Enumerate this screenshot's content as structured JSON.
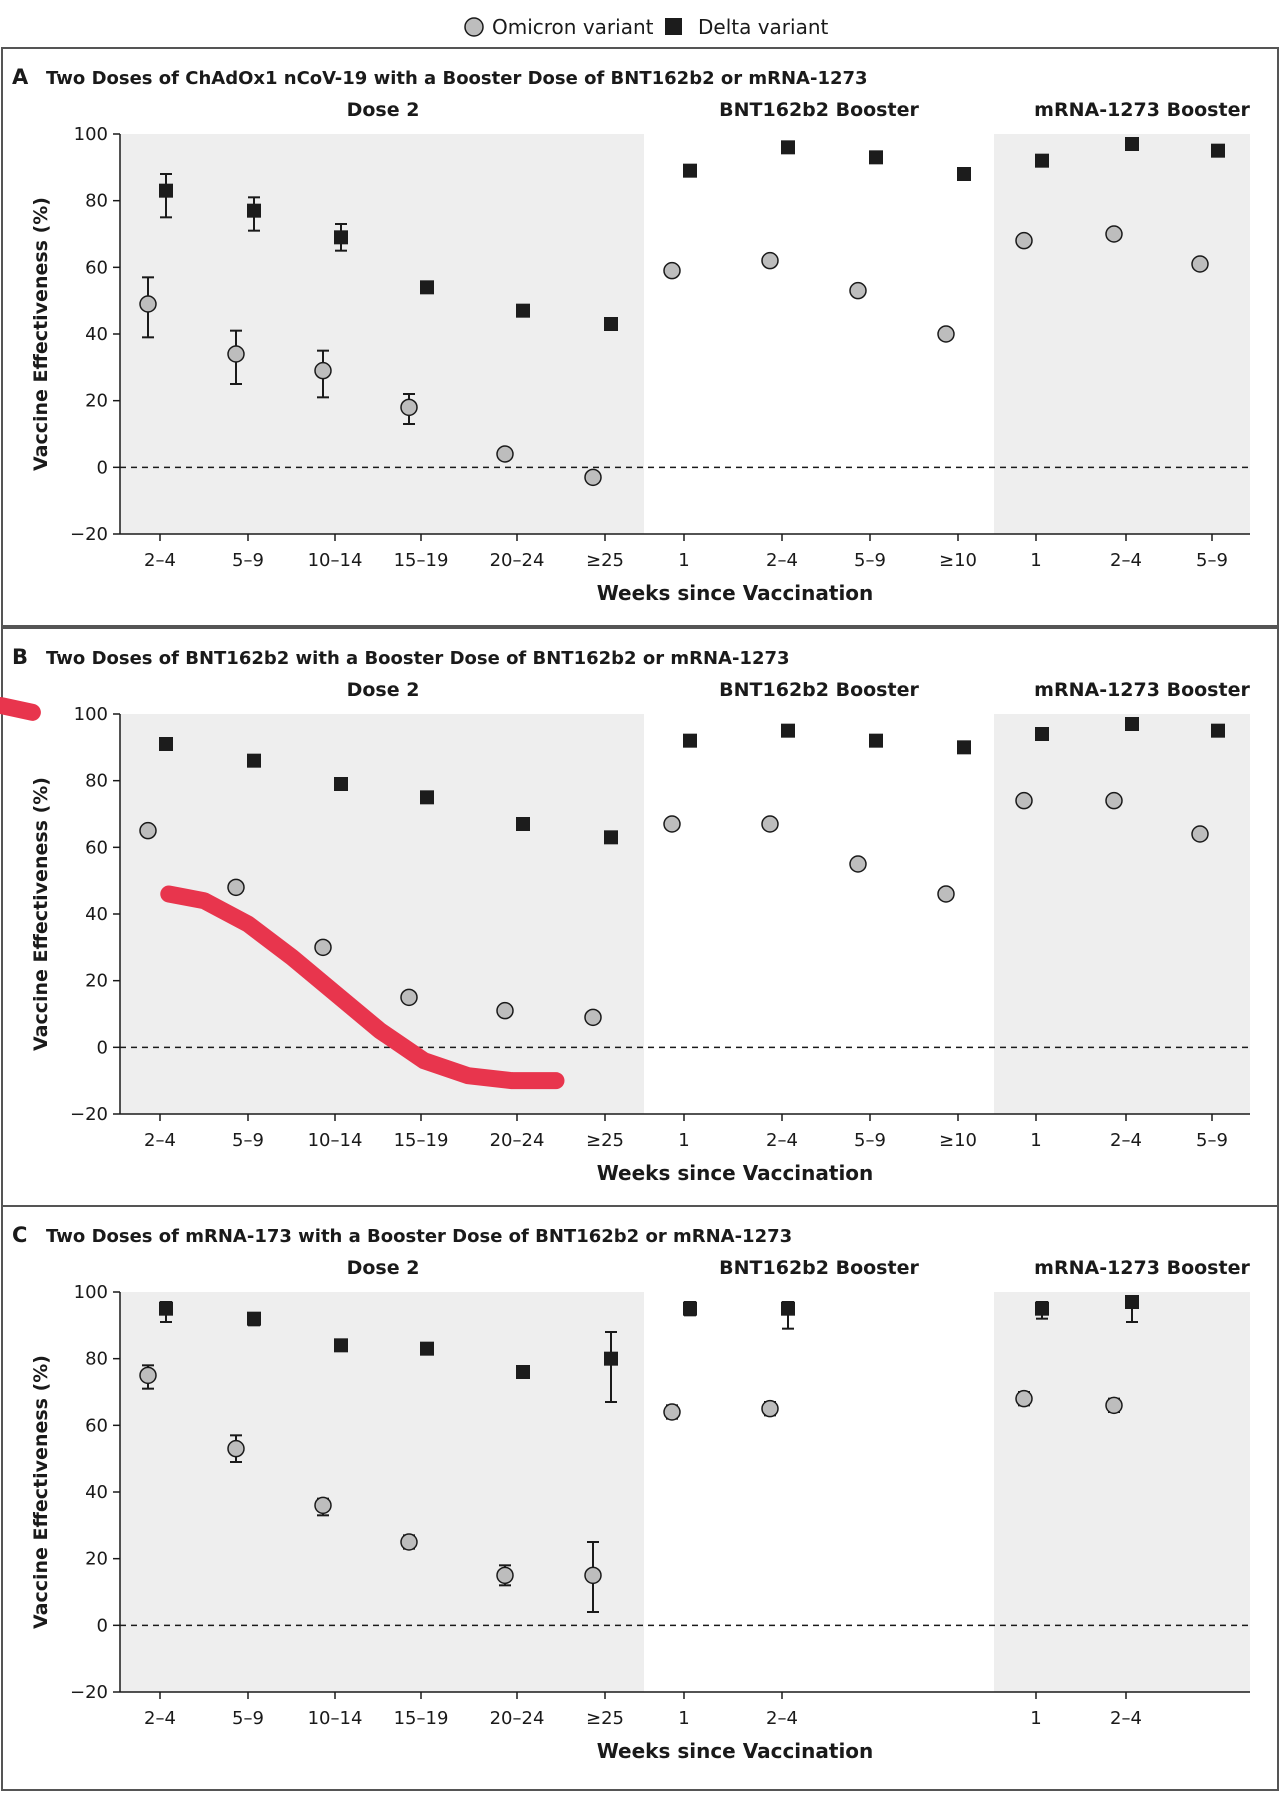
{
  "legend": {
    "omicron_label": "Omicron variant",
    "delta_label": "Delta variant"
  },
  "colors": {
    "omicron_fill": "#bdbdbd",
    "delta_fill": "#1c1c1c",
    "shade": "#eeeeee",
    "annotation": "#e8354d",
    "border": "#555555"
  },
  "chart_data": [
    {
      "type": "scatter",
      "panel_letter": "A",
      "title": "Two Doses of ChAdOx1 nCoV-19 with a Booster Dose of BNT162b2 or mRNA-1273",
      "xlabel": "Weeks since Vaccination",
      "ylabel": "Vaccine Effectiveness (%)",
      "ylim": [
        -20,
        100
      ],
      "yticks": [
        -20,
        0,
        20,
        40,
        60,
        80,
        100
      ],
      "reference_line": 0,
      "groups": [
        {
          "label": "Dose 2",
          "shaded": true,
          "categories": [
            "2–4",
            "5–9",
            "10–14",
            "15–19",
            "20–24",
            "≥25"
          ],
          "series": [
            {
              "name": "Omicron variant",
              "values": [
                49,
                34,
                29,
                18,
                4,
                -3
              ],
              "ci_low": [
                39,
                25,
                21,
                13,
                null,
                null
              ],
              "ci_high": [
                57,
                41,
                35,
                22,
                null,
                null
              ]
            },
            {
              "name": "Delta variant",
              "values": [
                83,
                77,
                69,
                54,
                47,
                43
              ],
              "ci_low": [
                75,
                71,
                65,
                null,
                null,
                null
              ],
              "ci_high": [
                88,
                81,
                73,
                null,
                null,
                null
              ]
            }
          ]
        },
        {
          "label": "BNT162b2 Booster",
          "shaded": false,
          "categories": [
            "1",
            "2–4",
            "5–9",
            "≥10"
          ],
          "series": [
            {
              "name": "Omicron variant",
              "values": [
                59,
                62,
                53,
                40
              ]
            },
            {
              "name": "Delta variant",
              "values": [
                89,
                96,
                93,
                88
              ]
            }
          ]
        },
        {
          "label": "mRNA-1273 Booster",
          "shaded": true,
          "categories": [
            "1",
            "2–4",
            "5–9"
          ],
          "series": [
            {
              "name": "Omicron variant",
              "values": [
                68,
                70,
                61
              ]
            },
            {
              "name": "Delta variant",
              "values": [
                92,
                97,
                95
              ]
            }
          ]
        }
      ]
    },
    {
      "type": "scatter",
      "panel_letter": "B",
      "title": "Two Doses of BNT162b2 with a Booster Dose of BNT162b2 or mRNA-1273",
      "xlabel": "Weeks since Vaccination",
      "ylabel": "Vaccine Effectiveness (%)",
      "ylim": [
        -20,
        100
      ],
      "yticks": [
        -20,
        0,
        20,
        40,
        60,
        80,
        100
      ],
      "reference_line": 0,
      "groups": [
        {
          "label": "Dose 2",
          "shaded": true,
          "categories": [
            "2–4",
            "5–9",
            "10–14",
            "15–19",
            "20–24",
            "≥25"
          ],
          "series": [
            {
              "name": "Omicron variant",
              "values": [
                65,
                48,
                30,
                15,
                11,
                9
              ]
            },
            {
              "name": "Delta variant",
              "values": [
                91,
                86,
                79,
                75,
                67,
                63
              ]
            }
          ]
        },
        {
          "label": "BNT162b2 Booster",
          "shaded": false,
          "categories": [
            "1",
            "2–4",
            "5–9",
            "≥10"
          ],
          "series": [
            {
              "name": "Omicron variant",
              "values": [
                67,
                67,
                55,
                46
              ]
            },
            {
              "name": "Delta variant",
              "values": [
                92,
                95,
                92,
                90
              ]
            }
          ]
        },
        {
          "label": "mRNA-1273 Booster",
          "shaded": true,
          "categories": [
            "1",
            "2–4",
            "5–9"
          ],
          "series": [
            {
              "name": "Omicron variant",
              "values": [
                74,
                74,
                64
              ]
            },
            {
              "name": "Delta variant",
              "values": [
                94,
                97,
                95
              ]
            }
          ]
        }
      ],
      "annotation_strokes": [
        {
          "points": [
            [
              -3.1,
              103
            ],
            [
              -2.6,
              103
            ],
            [
              -2.2,
              103.5
            ],
            [
              -1.8,
              102.5
            ],
            [
              -1.45,
              100.5
            ]
          ]
        },
        {
          "points": [
            [
              0.1,
              46
            ],
            [
              0.5,
              44
            ],
            [
              1.0,
              37
            ],
            [
              1.5,
              27
            ],
            [
              2.0,
              16
            ],
            [
              2.5,
              5
            ],
            [
              3.0,
              -4
            ],
            [
              3.5,
              -8.5
            ],
            [
              4.0,
              -10
            ],
            [
              4.5,
              -10
            ]
          ]
        }
      ]
    },
    {
      "type": "scatter",
      "panel_letter": "C",
      "title": "Two Doses of mRNA-173 with a Booster Dose of BNT162b2 or mRNA-1273",
      "xlabel": "Weeks since Vaccination",
      "ylabel": "Vaccine Effectiveness (%)",
      "ylim": [
        -20,
        100
      ],
      "yticks": [
        -20,
        0,
        20,
        40,
        60,
        80,
        100
      ],
      "reference_line": 0,
      "groups": [
        {
          "label": "Dose 2",
          "shaded": true,
          "categories": [
            "2–4",
            "5–9",
            "10–14",
            "15–19",
            "20–24",
            "≥25"
          ],
          "series": [
            {
              "name": "Omicron variant",
              "values": [
                75,
                53,
                36,
                25,
                15,
                15
              ],
              "ci_low": [
                71,
                49,
                33,
                23,
                12,
                4
              ],
              "ci_high": [
                78,
                57,
                38,
                27,
                18,
                25
              ]
            },
            {
              "name": "Delta variant",
              "values": [
                95,
                92,
                84,
                83,
                76,
                80
              ],
              "ci_low": [
                91,
                90,
                null,
                null,
                null,
                67
              ],
              "ci_high": [
                97,
                93,
                null,
                null,
                null,
                88
              ]
            }
          ]
        },
        {
          "label": "BNT162b2 Booster",
          "shaded": false,
          "categories": [
            "1",
            "2–4",
            "",
            ""
          ],
          "series": [
            {
              "name": "Omicron variant",
              "values": [
                64,
                65,
                null,
                null
              ],
              "ci_low": [
                62,
                63,
                null,
                null
              ],
              "ci_high": [
                66,
                67,
                null,
                null
              ]
            },
            {
              "name": "Delta variant",
              "values": [
                95,
                95,
                null,
                null
              ],
              "ci_low": [
                93,
                89,
                null,
                null
              ],
              "ci_high": [
                97,
                97,
                null,
                null
              ]
            }
          ]
        },
        {
          "label": "mRNA-1273 Booster",
          "shaded": true,
          "categories": [
            "1",
            "2–4",
            ""
          ],
          "series": [
            {
              "name": "Omicron variant",
              "values": [
                68,
                66,
                null
              ],
              "ci_low": [
                66,
                64,
                null
              ],
              "ci_high": [
                70,
                68,
                null
              ]
            },
            {
              "name": "Delta variant",
              "values": [
                95,
                97,
                null
              ],
              "ci_low": [
                92,
                91,
                null
              ],
              "ci_high": [
                97,
                98,
                null
              ]
            }
          ]
        }
      ]
    }
  ]
}
